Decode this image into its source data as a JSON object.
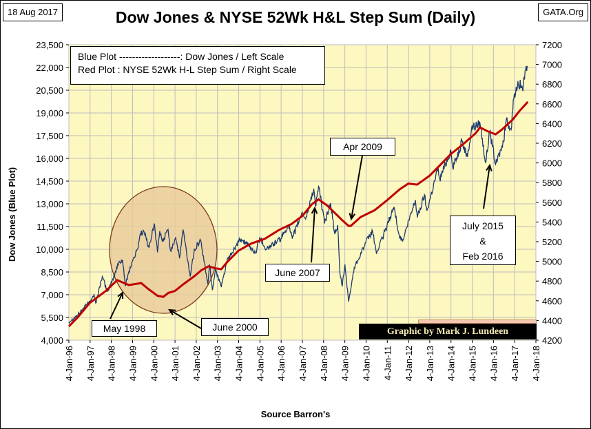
{
  "header": {
    "date": "18 Aug 2017",
    "source": "GATA.Org",
    "title": "Dow Jones & NYSE 52Wk H&L Step Sum (Daily)"
  },
  "legend": {
    "line1": "Blue Plot -------------------:  Dow Jones / Left Scale",
    "line2": "Red Plot : NYSE 52Wk H-L Step Sum / Right Scale"
  },
  "credit": "Graphic by Mark J. Lundeen",
  "colors": {
    "plot_bg": "#fdf7c0",
    "dow": "#1c3a6e",
    "step_sum": "#c00000",
    "grid": "#bdbdbd",
    "circle_fill": "#e9c99a",
    "circle_stroke": "#7a3b1d"
  },
  "annotations": [
    {
      "id": "may1998",
      "text": "May 1998"
    },
    {
      "id": "june2000",
      "text": "June 2000"
    },
    {
      "id": "june2007",
      "text": "June 2007"
    },
    {
      "id": "apr2009",
      "text": "Apr 2009"
    },
    {
      "id": "july2015",
      "text": "July 2015\n&\nFeb 2016"
    }
  ],
  "chart_data": {
    "type": "line",
    "title": "Dow Jones & NYSE 52Wk H&L Step Sum (Daily)",
    "xlabel": "Source Barron's",
    "ylabel": "Dow Jones   (Blue Plot)",
    "x_ticks": [
      "4-Jan-96",
      "4-Jan-97",
      "4-Jan-98",
      "4-Jan-99",
      "4-Jan-00",
      "4-Jan-01",
      "4-Jan-02",
      "4-Jan-03",
      "4-Jan-04",
      "4-Jan-05",
      "4-Jan-06",
      "4-Jan-07",
      "4-Jan-08",
      "4-Jan-09",
      "4-Jan-10",
      "4-Jan-11",
      "4-Jan-12",
      "4-Jan-13",
      "4-Jan-14",
      "4-Jan-15",
      "4-Jan-16",
      "4-Jan-17",
      "4-Jan-18"
    ],
    "y_left_ticks": [
      "4,000",
      "5,500",
      "7,000",
      "8,500",
      "10,000",
      "11,500",
      "13,000",
      "14,500",
      "16,000",
      "17,500",
      "19,000",
      "20,500",
      "22,000",
      "23,500"
    ],
    "y_left_range": [
      4000,
      23500
    ],
    "y_right_ticks": [
      "4200",
      "4400",
      "4600",
      "4800",
      "5000",
      "5200",
      "5400",
      "5600",
      "5800",
      "6000",
      "6200",
      "6400",
      "6600",
      "6800",
      "7000",
      "7200"
    ],
    "y_right_range": [
      4200,
      7200
    ],
    "grid": true,
    "series": [
      {
        "name": "Dow Jones",
        "axis": "left",
        "points": [
          [
            "1996-01-04",
            5200
          ],
          [
            "1996-06-01",
            5650
          ],
          [
            "1996-12-01",
            6450
          ],
          [
            "1997-03-10",
            7000
          ],
          [
            "1997-04-10",
            6450
          ],
          [
            "1997-08-01",
            8200
          ],
          [
            "1997-10-27",
            7200
          ],
          [
            "1998-01-10",
            7800
          ],
          [
            "1998-05-10",
            9100
          ],
          [
            "1998-07-15",
            9300
          ],
          [
            "1998-08-31",
            7600
          ],
          [
            "1998-10-15",
            8300
          ],
          [
            "1999-01-01",
            9200
          ],
          [
            "1999-04-01",
            10000
          ],
          [
            "1999-05-15",
            11000
          ],
          [
            "1999-07-15",
            11200
          ],
          [
            "1999-10-15",
            10100
          ],
          [
            "2000-01-14",
            11700
          ],
          [
            "2000-03-07",
            9800
          ],
          [
            "2000-04-15",
            11200
          ],
          [
            "2000-06-01",
            10500
          ],
          [
            "2000-09-06",
            11300
          ],
          [
            "2000-10-18",
            9900
          ],
          [
            "2001-01-15",
            10800
          ],
          [
            "2001-03-22",
            9400
          ],
          [
            "2001-05-21",
            11300
          ],
          [
            "2001-09-21",
            8200
          ],
          [
            "2001-12-01",
            10000
          ],
          [
            "2002-03-19",
            10600
          ],
          [
            "2002-07-23",
            7700
          ],
          [
            "2002-08-22",
            9000
          ],
          [
            "2002-10-09",
            7300
          ],
          [
            "2002-12-01",
            8700
          ],
          [
            "2003-03-11",
            7500
          ],
          [
            "2003-06-15",
            9200
          ],
          [
            "2003-12-31",
            10450
          ],
          [
            "2004-02-15",
            10700
          ],
          [
            "2004-10-25",
            9750
          ],
          [
            "2004-12-31",
            10800
          ],
          [
            "2005-04-20",
            10000
          ],
          [
            "2005-12-31",
            10700
          ],
          [
            "2006-05-10",
            11600
          ],
          [
            "2006-07-15",
            10700
          ],
          [
            "2006-12-31",
            12450
          ],
          [
            "2007-03-01",
            12000
          ],
          [
            "2007-07-19",
            14000
          ],
          [
            "2007-08-16",
            12850
          ],
          [
            "2007-10-09",
            14150
          ],
          [
            "2008-01-22",
            11700
          ],
          [
            "2008-05-01",
            13050
          ],
          [
            "2008-07-15",
            11000
          ],
          [
            "2008-09-01",
            11600
          ],
          [
            "2008-10-10",
            8450
          ],
          [
            "2008-11-20",
            7550
          ],
          [
            "2009-01-05",
            9000
          ],
          [
            "2009-03-09",
            6550
          ],
          [
            "2009-06-15",
            8800
          ],
          [
            "2009-12-31",
            10450
          ],
          [
            "2010-04-26",
            11200
          ],
          [
            "2010-07-02",
            9700
          ],
          [
            "2010-12-31",
            11550
          ],
          [
            "2011-04-29",
            12800
          ],
          [
            "2011-08-10",
            10700
          ],
          [
            "2011-10-04",
            10650
          ],
          [
            "2012-05-01",
            13250
          ],
          [
            "2012-06-04",
            12100
          ],
          [
            "2012-10-05",
            13600
          ],
          [
            "2012-11-15",
            12550
          ],
          [
            "2013-05-28",
            15400
          ],
          [
            "2013-06-24",
            14650
          ],
          [
            "2013-12-31",
            16550
          ],
          [
            "2014-02-03",
            15400
          ],
          [
            "2014-07-15",
            17100
          ],
          [
            "2014-10-15",
            16100
          ],
          [
            "2014-12-26",
            18050
          ],
          [
            "2015-05-19",
            18300
          ],
          [
            "2015-08-25",
            15700
          ],
          [
            "2015-11-01",
            17800
          ],
          [
            "2016-02-11",
            15600
          ],
          [
            "2016-06-27",
            17100
          ],
          [
            "2016-08-15",
            18600
          ],
          [
            "2016-11-04",
            17900
          ],
          [
            "2016-12-20",
            19950
          ],
          [
            "2017-03-01",
            21100
          ],
          [
            "2017-05-17",
            20600
          ],
          [
            "2017-08-08",
            22100
          ]
        ]
      },
      {
        "name": "NYSE 52Wk H-L Step Sum",
        "axis": "right",
        "points": [
          [
            "1996-01-04",
            4340
          ],
          [
            "1996-06-01",
            4430
          ],
          [
            "1997-01-01",
            4580
          ],
          [
            "1997-10-01",
            4700
          ],
          [
            "1998-04-15",
            4810
          ],
          [
            "1998-07-01",
            4790
          ],
          [
            "1998-11-01",
            4760
          ],
          [
            "1999-06-01",
            4780
          ],
          [
            "1999-10-01",
            4720
          ],
          [
            "2000-03-10",
            4650
          ],
          [
            "2000-06-15",
            4640
          ],
          [
            "2000-09-10",
            4680
          ],
          [
            "2001-01-01",
            4700
          ],
          [
            "2001-06-01",
            4770
          ],
          [
            "2001-12-01",
            4850
          ],
          [
            "2002-04-01",
            4910
          ],
          [
            "2002-08-01",
            4950
          ],
          [
            "2002-12-01",
            4930
          ],
          [
            "2003-03-11",
            4920
          ],
          [
            "2003-06-15",
            4990
          ],
          [
            "2004-01-01",
            5110
          ],
          [
            "2004-08-01",
            5180
          ],
          [
            "2005-04-01",
            5230
          ],
          [
            "2005-12-01",
            5320
          ],
          [
            "2006-07-01",
            5380
          ],
          [
            "2007-01-01",
            5460
          ],
          [
            "2007-06-15",
            5580
          ],
          [
            "2007-10-10",
            5630
          ],
          [
            "2008-03-01",
            5570
          ],
          [
            "2008-07-01",
            5500
          ],
          [
            "2008-11-15",
            5420
          ],
          [
            "2009-03-09",
            5360
          ],
          [
            "2009-04-15",
            5360
          ],
          [
            "2009-10-01",
            5450
          ],
          [
            "2010-06-01",
            5520
          ],
          [
            "2010-12-31",
            5620
          ],
          [
            "2011-08-01",
            5730
          ],
          [
            "2012-01-01",
            5790
          ],
          [
            "2012-06-01",
            5780
          ],
          [
            "2013-01-01",
            5870
          ],
          [
            "2013-06-01",
            5960
          ],
          [
            "2014-01-01",
            6090
          ],
          [
            "2014-08-01",
            6190
          ],
          [
            "2015-03-01",
            6300
          ],
          [
            "2015-05-20",
            6360
          ],
          [
            "2015-10-01",
            6320
          ],
          [
            "2016-02-11",
            6290
          ],
          [
            "2016-06-01",
            6340
          ],
          [
            "2016-12-01",
            6440
          ],
          [
            "2017-04-01",
            6530
          ],
          [
            "2017-08-18",
            6620
          ]
        ]
      }
    ]
  }
}
